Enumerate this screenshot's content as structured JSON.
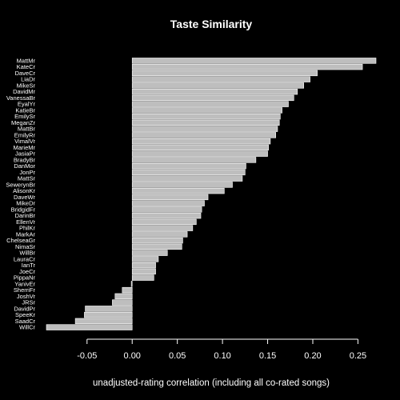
{
  "chart_data": {
    "type": "bar",
    "orientation": "horizontal",
    "title": "Taste Similarity",
    "xlabel": "unadjusted-rating correlation (including all co-rated songs)",
    "ylabel": "",
    "xlim": [
      -0.095,
      0.27
    ],
    "xticks": [
      -0.05,
      0.0,
      0.05,
      0.1,
      0.15,
      0.2,
      0.25
    ],
    "xtick_labels": [
      "-0.05",
      "0.00",
      "0.05",
      "0.10",
      "0.15",
      "0.20",
      "0.25"
    ],
    "grid": false,
    "bar_color": "#bebebe",
    "bar_border_color": "#ffffff",
    "background_color": "#000000",
    "categories": [
      "MattMr",
      "KateCr",
      "DaveCr",
      "LiaDr",
      "MikeSr",
      "DavidMr",
      "VanessaBr",
      "EyalYr",
      "KatieBr",
      "EmilySr",
      "MeganZr",
      "MattBr",
      "EmilyRr",
      "VimalVr",
      "MarieMr",
      "JasiaPr",
      "BradyBr",
      "DanMor",
      "JonPr",
      "MattSr",
      "SewerynBr",
      "AlisonKr",
      "DaveWr",
      "MikeDr",
      "BridgidFr",
      "DarinBr",
      "EllenVr",
      "PhilKr",
      "MarkAr",
      "ChelseaGr",
      "NimaSr",
      "WillBr",
      "LauraCr",
      "IanTr",
      "JoeCr",
      "PippaNr",
      "YanivEr",
      "SherriFr",
      "JoshVr",
      "JRSr",
      "DavidPr",
      "SpeeKr",
      "SaadCr",
      "WillCr"
    ],
    "values": [
      0.27,
      0.255,
      0.205,
      0.197,
      0.19,
      0.183,
      0.179,
      0.173,
      0.166,
      0.164,
      0.163,
      0.161,
      0.159,
      0.153,
      0.151,
      0.15,
      0.137,
      0.126,
      0.125,
      0.122,
      0.111,
      0.102,
      0.084,
      0.08,
      0.077,
      0.076,
      0.071,
      0.067,
      0.061,
      0.056,
      0.055,
      0.039,
      0.029,
      0.026,
      0.026,
      0.024,
      -0.001,
      -0.011,
      -0.019,
      -0.022,
      -0.052,
      -0.053,
      -0.063,
      -0.095
    ]
  }
}
